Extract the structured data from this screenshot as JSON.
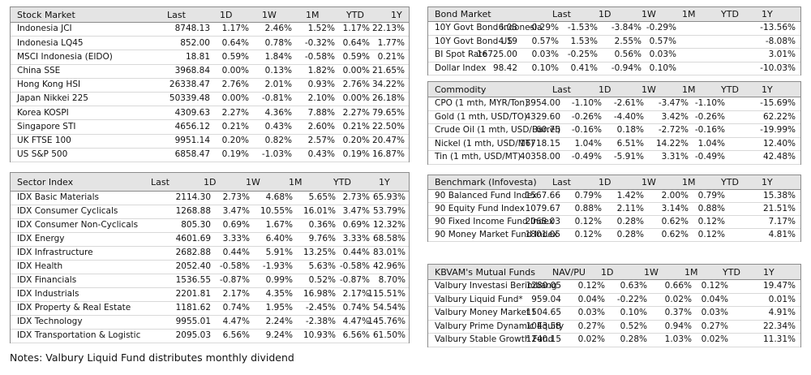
{
  "tables": [
    {
      "title": "Stock Market",
      "columns": [
        "Last",
        "1D",
        "1W",
        "1M",
        "YTD",
        "1Y"
      ],
      "rows": [
        [
          "Indonesia JCI",
          "8748.13",
          "1.17%",
          "2.46%",
          "1.52%",
          "1.17%",
          "22.13%"
        ],
        [
          "Indonesia LQ45",
          "852.00",
          "0.64%",
          "0.78%",
          "-0.32%",
          "0.64%",
          "1.77%"
        ],
        [
          "MSCI Indonesia (EIDO)",
          "18.81",
          "0.59%",
          "1.84%",
          "-0.58%",
          "0.59%",
          "0.21%"
        ],
        [
          "China SSE",
          "3968.84",
          "0.00%",
          "0.13%",
          "1.82%",
          "0.00%",
          "21.65%"
        ],
        [
          "Hong Kong HSI",
          "26338.47",
          "2.76%",
          "2.01%",
          "0.93%",
          "2.76%",
          "34.22%"
        ],
        [
          "Japan Nikkei 225",
          "50339.48",
          "0.00%",
          "-0.81%",
          "2.10%",
          "0.00%",
          "26.18%"
        ],
        [
          "Korea KOSPI",
          "4309.63",
          "2.27%",
          "4.36%",
          "7.88%",
          "2.27%",
          "79.65%"
        ],
        [
          "Singapore STI",
          "4656.12",
          "0.21%",
          "0.43%",
          "2.60%",
          "0.21%",
          "22.50%"
        ],
        [
          "UK FTSE 100",
          "9951.14",
          "0.20%",
          "0.82%",
          "2.57%",
          "0.20%",
          "20.47%"
        ],
        [
          "US S&P 500",
          "6858.47",
          "0.19%",
          "-1.03%",
          "0.43%",
          "0.19%",
          "16.87%"
        ]
      ]
    },
    {
      "title": "Sector Index",
      "columns": [
        "Last",
        "1D",
        "1W",
        "1M",
        "YTD",
        "1Y"
      ],
      "rows": [
        [
          "IDX Basic Materials",
          "2114.30",
          "2.73%",
          "4.68%",
          "5.65%",
          "2.73%",
          "65.93%"
        ],
        [
          "IDX Consumer Cyclicals",
          "1268.88",
          "3.47%",
          "10.55%",
          "16.01%",
          "3.47%",
          "53.79%"
        ],
        [
          "IDX Consumer Non-Cyclicals",
          "805.30",
          "0.69%",
          "1.67%",
          "0.36%",
          "0.69%",
          "12.32%"
        ],
        [
          "IDX Energy",
          "4601.69",
          "3.33%",
          "6.40%",
          "9.76%",
          "3.33%",
          "68.58%"
        ],
        [
          "IDX Infrastructure",
          "2682.88",
          "0.44%",
          "5.91%",
          "13.25%",
          "0.44%",
          "83.01%"
        ],
        [
          "IDX Health",
          "2052.40",
          "-0.58%",
          "-1.93%",
          "5.63%",
          "-0.58%",
          "42.96%"
        ],
        [
          "IDX Financials",
          "1536.55",
          "-0.87%",
          "0.99%",
          "0.52%",
          "-0.87%",
          "8.70%"
        ],
        [
          "IDX Industrials",
          "2201.81",
          "2.17%",
          "4.35%",
          "16.98%",
          "2.17%",
          "115.51%"
        ],
        [
          "IDX Property & Real Estate",
          "1181.62",
          "0.74%",
          "1.95%",
          "-2.45%",
          "0.74%",
          "54.54%"
        ],
        [
          "IDX Technology",
          "9955.01",
          "4.47%",
          "2.24%",
          "-2.38%",
          "4.47%",
          "145.76%"
        ],
        [
          "IDX Transportation & Logistic",
          "2095.03",
          "6.56%",
          "9.24%",
          "10.93%",
          "6.56%",
          "61.50%"
        ]
      ]
    },
    {
      "title": "Bond Market",
      "columns": [
        "Last",
        "1D",
        "1W",
        "1M",
        "YTD",
        "1Y"
      ],
      "rows": [
        [
          "10Y Govt Bond Indonesia",
          "6.03",
          "-0.29%",
          "-1.53%",
          "-3.84%",
          "-0.29%",
          "-13.56%"
        ],
        [
          "10Y Govt Bond US",
          "4.19",
          "0.57%",
          "1.53%",
          "2.55%",
          "0.57%",
          "-8.08%"
        ],
        [
          "BI Spot Rate",
          "16725.00",
          "0.03%",
          "-0.25%",
          "0.56%",
          "0.03%",
          "3.01%"
        ],
        [
          "Dollar Index",
          "98.42",
          "0.10%",
          "0.41%",
          "-0.94%",
          "0.10%",
          "-10.03%"
        ]
      ]
    },
    {
      "title": "Commodity",
      "columns": [
        "Last",
        "1D",
        "1W",
        "1M",
        "YTD",
        "1Y"
      ],
      "rows": [
        [
          "CPO (1 mth, MYR/Ton)",
          "3954.00",
          "-1.10%",
          "-2.61%",
          "-3.47%",
          "-1.10%",
          "-15.69%"
        ],
        [
          "Gold (1 mth, USD/TO)",
          "4329.60",
          "-0.26%",
          "-4.40%",
          "3.42%",
          "-0.26%",
          "62.22%"
        ],
        [
          "Crude Oil (1 mth, USD/Barrel)",
          "60.75",
          "-0.16%",
          "0.18%",
          "-2.72%",
          "-0.16%",
          "-19.99%"
        ],
        [
          "Nickel (1 mth, USD/MT)",
          "16718.15",
          "1.04%",
          "6.51%",
          "14.22%",
          "1.04%",
          "12.40%"
        ],
        [
          "Tin (1 mth, USD/MT)",
          "40358.00",
          "-0.49%",
          "-5.91%",
          "3.31%",
          "-0.49%",
          "42.48%"
        ]
      ]
    },
    {
      "title": "Benchmark (Infovesta)",
      "columns": [
        "Last",
        "1D",
        "1W",
        "1M",
        "YTD",
        "1Y"
      ],
      "rows": [
        [
          "90 Balanced Fund Index",
          "1567.66",
          "0.79%",
          "1.42%",
          "2.00%",
          "0.79%",
          "15.38%"
        ],
        [
          "90 Equity Fund Index",
          "1079.67",
          "0.88%",
          "2.11%",
          "3.14%",
          "0.88%",
          "21.51%"
        ],
        [
          "90 Fixed Income Fund Index",
          "2068.03",
          "0.12%",
          "0.28%",
          "0.62%",
          "0.12%",
          "7.17%"
        ],
        [
          "90 Money Market Fund Index",
          "1801.05",
          "0.12%",
          "0.28%",
          "0.62%",
          "0.12%",
          "4.81%"
        ]
      ]
    },
    {
      "title": "KBVAM's Mutual Funds",
      "columns": [
        "NAV/PU",
        "1D",
        "1W",
        "1M",
        "YTD",
        "1Y"
      ],
      "rows": [
        [
          "Valbury Investasi Berimbang",
          "1280.05",
          "0.12%",
          "0.63%",
          "0.66%",
          "0.12%",
          "19.47%"
        ],
        [
          "Valbury Liquid Fund*",
          "959.04",
          "0.04%",
          "-0.22%",
          "0.02%",
          "0.04%",
          "0.01%"
        ],
        [
          "Valbury Money Market I",
          "1504.65",
          "0.03%",
          "0.10%",
          "0.37%",
          "0.03%",
          "4.91%"
        ],
        [
          "Valbury Prime Dynamic Equity",
          "1043.58",
          "0.27%",
          "0.52%",
          "0.94%",
          "0.27%",
          "22.34%"
        ],
        [
          "Valbury Stable Growth Fund",
          "1240.15",
          "0.02%",
          "0.28%",
          "1.03%",
          "0.02%",
          "11.31%"
        ]
      ]
    }
  ],
  "notes": "Notes: Valbury Liquid Fund distributes monthly dividend"
}
